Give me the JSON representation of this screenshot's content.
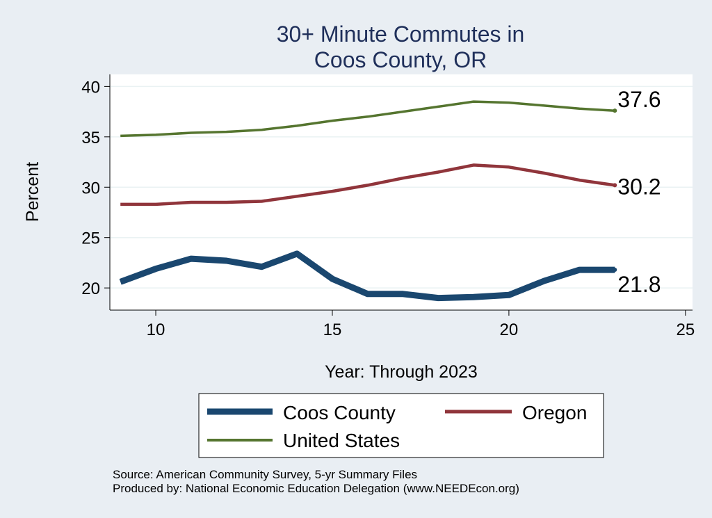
{
  "chart_data": {
    "type": "line",
    "title": [
      "30+ Minute Commutes in",
      "Coos County, OR"
    ],
    "xlabel": "Year: Through 2023",
    "ylabel": "Percent",
    "xlim": [
      8.7,
      25.2
    ],
    "ylim": [
      17.8,
      41.2
    ],
    "x_ticks": [
      10,
      15,
      20,
      25
    ],
    "y_ticks": [
      20,
      25,
      30,
      35,
      40
    ],
    "grid": true,
    "x": [
      9,
      10,
      11,
      12,
      13,
      14,
      15,
      16,
      17,
      18,
      19,
      20,
      21,
      22,
      23
    ],
    "series": [
      {
        "name": "Coos County",
        "color": "#1a476f",
        "values": [
          20.6,
          21.9,
          22.9,
          22.7,
          22.1,
          23.4,
          20.9,
          19.4,
          19.4,
          19.0,
          19.1,
          19.3,
          20.7,
          21.8,
          21.8
        ],
        "end_label": "21.8"
      },
      {
        "name": "Oregon",
        "color": "#90353b",
        "values": [
          28.3,
          28.3,
          28.5,
          28.5,
          28.6,
          29.1,
          29.6,
          30.2,
          30.9,
          31.5,
          32.2,
          32.0,
          31.4,
          30.7,
          30.2
        ],
        "end_label": "30.2"
      },
      {
        "name": "United States",
        "color": "#55752f",
        "values": [
          35.1,
          35.2,
          35.4,
          35.5,
          35.7,
          36.1,
          36.6,
          37.0,
          37.5,
          38.0,
          38.5,
          38.4,
          38.1,
          37.8,
          37.6
        ],
        "end_label": "37.6"
      }
    ],
    "legend_position": "bottom"
  },
  "notes": {
    "source": "Source: American Community Survey, 5-yr Summary Files",
    "produced": "Produced by: National Economic Education Delegation (www.NEEDEcon.org)"
  }
}
